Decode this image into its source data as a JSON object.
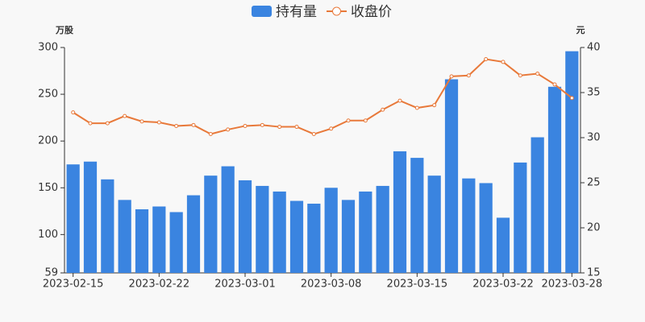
{
  "chart_data": {
    "type": "bar-line",
    "y_label": "万股",
    "y2_label": "元",
    "categories": [
      "2023-02-15",
      null,
      null,
      null,
      null,
      "2023-02-22",
      null,
      null,
      null,
      null,
      "2023-03-01",
      null,
      null,
      null,
      null,
      "2023-03-08",
      null,
      null,
      null,
      null,
      "2023-03-15",
      null,
      null,
      null,
      null,
      "2023-03-22",
      null,
      null,
      null,
      "2023-03-28"
    ],
    "series": [
      {
        "name": "持有量",
        "type": "bar",
        "color": "#3a84e0",
        "values": [
          175,
          178,
          159,
          137,
          127,
          130,
          124,
          142,
          163,
          173,
          158,
          152,
          146,
          136,
          133,
          150,
          137,
          146,
          152,
          189,
          182,
          163,
          266,
          160,
          155,
          118,
          177,
          204,
          258,
          296
        ]
      },
      {
        "name": "收盘价",
        "type": "line",
        "axis": "y2",
        "color": "#e8793a",
        "values": [
          32.8,
          31.6,
          31.6,
          32.4,
          31.8,
          31.7,
          31.3,
          31.4,
          30.4,
          30.9,
          31.3,
          31.4,
          31.2,
          31.2,
          30.4,
          31.0,
          31.9,
          31.9,
          33.1,
          34.1,
          33.3,
          33.6,
          36.8,
          36.9,
          38.7,
          38.4,
          36.9,
          37.1,
          35.9,
          34.4
        ]
      }
    ],
    "ylim": [
      59,
      300
    ],
    "yticks": [
      59,
      100,
      150,
      200,
      250,
      300
    ],
    "y2lim": [
      15,
      40
    ],
    "y2ticks": [
      15,
      20,
      25,
      30,
      35,
      40
    ]
  }
}
